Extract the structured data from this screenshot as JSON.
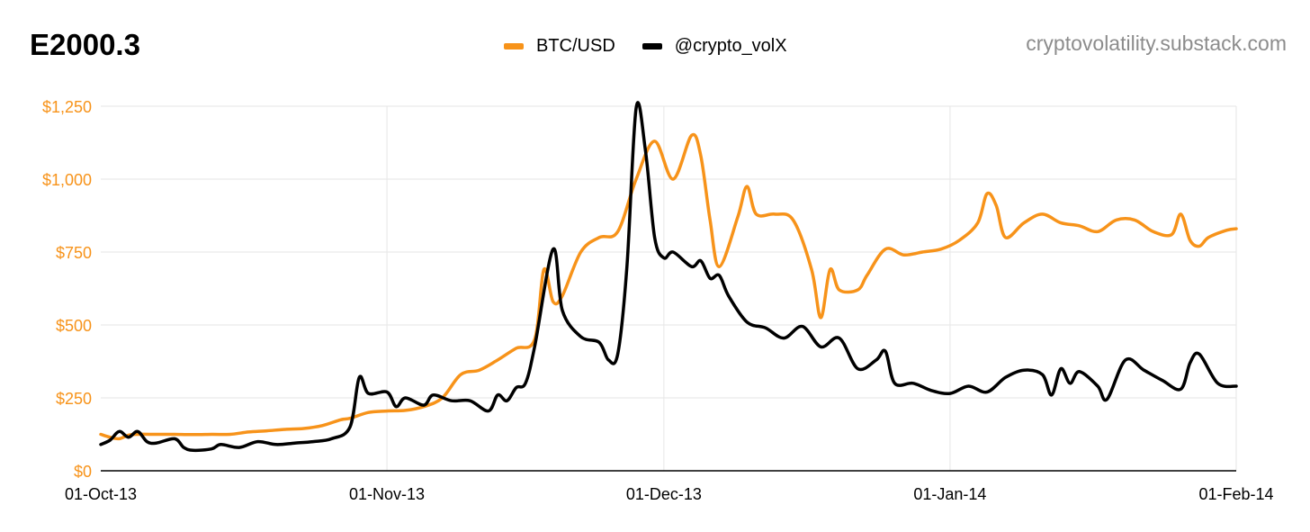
{
  "title": "E2000.3",
  "watermark": "cryptovolatility.substack.com",
  "chart_data": {
    "type": "line",
    "x_type": "date",
    "xlim": [
      "2013-10-01",
      "2014-02-01"
    ],
    "ylim": [
      0,
      1250
    ],
    "y_ticks": [
      0,
      250,
      500,
      750,
      1000,
      1250
    ],
    "y_tick_labels": [
      "$0",
      "$250",
      "$500",
      "$750",
      "$1,000",
      "$1,250"
    ],
    "x_ticks": [
      "2013-10-01",
      "2013-11-01",
      "2013-12-01",
      "2014-01-01",
      "2014-02-01"
    ],
    "x_tick_labels": [
      "01-Oct-13",
      "01-Nov-13",
      "01-Dec-13",
      "01-Jan-14",
      "01-Feb-14"
    ],
    "y_tick_color": "#f7931a",
    "grid": true,
    "legend_position": "top-center",
    "series": [
      {
        "name": "BTC/USD",
        "color": "#f7931a",
        "points": [
          [
            "2013-10-01",
            125
          ],
          [
            "2013-10-02",
            115
          ],
          [
            "2013-10-03",
            110
          ],
          [
            "2013-10-04",
            122
          ],
          [
            "2013-10-05",
            125
          ],
          [
            "2013-10-07",
            125
          ],
          [
            "2013-10-09",
            125
          ],
          [
            "2013-10-11",
            124
          ],
          [
            "2013-10-13",
            125
          ],
          [
            "2013-10-15",
            125
          ],
          [
            "2013-10-17",
            133
          ],
          [
            "2013-10-19",
            137
          ],
          [
            "2013-10-21",
            142
          ],
          [
            "2013-10-23",
            145
          ],
          [
            "2013-10-25",
            155
          ],
          [
            "2013-10-27",
            175
          ],
          [
            "2013-10-28",
            180
          ],
          [
            "2013-10-30",
            200
          ],
          [
            "2013-11-01",
            205
          ],
          [
            "2013-11-03",
            207
          ],
          [
            "2013-11-05",
            220
          ],
          [
            "2013-11-07",
            250
          ],
          [
            "2013-11-09",
            330
          ],
          [
            "2013-11-11",
            345
          ],
          [
            "2013-11-13",
            380
          ],
          [
            "2013-11-15",
            420
          ],
          [
            "2013-11-17",
            450
          ],
          [
            "2013-11-18",
            690
          ],
          [
            "2013-11-19",
            580
          ],
          [
            "2013-11-20",
            600
          ],
          [
            "2013-11-22",
            750
          ],
          [
            "2013-11-24",
            800
          ],
          [
            "2013-11-26",
            820
          ],
          [
            "2013-11-28",
            1000
          ],
          [
            "2013-11-30",
            1130
          ],
          [
            "2013-12-02",
            1000
          ],
          [
            "2013-12-04",
            1150
          ],
          [
            "2013-12-05",
            1080
          ],
          [
            "2013-12-06",
            860
          ],
          [
            "2013-12-07",
            700
          ],
          [
            "2013-12-09",
            870
          ],
          [
            "2013-12-10",
            975
          ],
          [
            "2013-12-11",
            880
          ],
          [
            "2013-12-13",
            880
          ],
          [
            "2013-12-15",
            860
          ],
          [
            "2013-12-17",
            690
          ],
          [
            "2013-12-18",
            525
          ],
          [
            "2013-12-19",
            690
          ],
          [
            "2013-12-20",
            620
          ],
          [
            "2013-12-22",
            620
          ],
          [
            "2013-12-23",
            670
          ],
          [
            "2013-12-25",
            760
          ],
          [
            "2013-12-27",
            740
          ],
          [
            "2013-12-29",
            750
          ],
          [
            "2013-12-31",
            760
          ],
          [
            "2014-01-02",
            790
          ],
          [
            "2014-01-04",
            850
          ],
          [
            "2014-01-05",
            950
          ],
          [
            "2014-01-06",
            910
          ],
          [
            "2014-01-07",
            800
          ],
          [
            "2014-01-09",
            850
          ],
          [
            "2014-01-11",
            880
          ],
          [
            "2014-01-13",
            850
          ],
          [
            "2014-01-15",
            840
          ],
          [
            "2014-01-17",
            820
          ],
          [
            "2014-01-19",
            860
          ],
          [
            "2014-01-21",
            860
          ],
          [
            "2014-01-23",
            820
          ],
          [
            "2014-01-25",
            810
          ],
          [
            "2014-01-26",
            880
          ],
          [
            "2014-01-27",
            790
          ],
          [
            "2014-01-28",
            770
          ],
          [
            "2014-01-29",
            800
          ],
          [
            "2014-01-31",
            825
          ],
          [
            "2014-02-01",
            830
          ]
        ]
      },
      {
        "name": "@crypto_volX",
        "color": "#000000",
        "points": [
          [
            "2013-10-01",
            90
          ],
          [
            "2013-10-02",
            105
          ],
          [
            "2013-10-03",
            135
          ],
          [
            "2013-10-04",
            115
          ],
          [
            "2013-10-05",
            135
          ],
          [
            "2013-10-06",
            100
          ],
          [
            "2013-10-07",
            95
          ],
          [
            "2013-10-09",
            110
          ],
          [
            "2013-10-10",
            80
          ],
          [
            "2013-10-11",
            70
          ],
          [
            "2013-10-13",
            75
          ],
          [
            "2013-10-14",
            90
          ],
          [
            "2013-10-16",
            80
          ],
          [
            "2013-10-18",
            100
          ],
          [
            "2013-10-20",
            90
          ],
          [
            "2013-10-22",
            95
          ],
          [
            "2013-10-24",
            100
          ],
          [
            "2013-10-26",
            110
          ],
          [
            "2013-10-28",
            150
          ],
          [
            "2013-10-29",
            320
          ],
          [
            "2013-10-30",
            265
          ],
          [
            "2013-11-01",
            270
          ],
          [
            "2013-11-02",
            220
          ],
          [
            "2013-11-03",
            250
          ],
          [
            "2013-11-05",
            225
          ],
          [
            "2013-11-06",
            260
          ],
          [
            "2013-11-08",
            240
          ],
          [
            "2013-11-10",
            240
          ],
          [
            "2013-11-12",
            205
          ],
          [
            "2013-11-13",
            260
          ],
          [
            "2013-11-14",
            240
          ],
          [
            "2013-11-15",
            285
          ],
          [
            "2013-11-16",
            300
          ],
          [
            "2013-11-17",
            425
          ],
          [
            "2013-11-19",
            760
          ],
          [
            "2013-11-20",
            550
          ],
          [
            "2013-11-22",
            460
          ],
          [
            "2013-11-24",
            440
          ],
          [
            "2013-11-25",
            380
          ],
          [
            "2013-11-26",
            400
          ],
          [
            "2013-11-27",
            700
          ],
          [
            "2013-11-28",
            1245
          ],
          [
            "2013-11-29",
            1100
          ],
          [
            "2013-11-30",
            800
          ],
          [
            "2013-12-01",
            730
          ],
          [
            "2013-12-02",
            750
          ],
          [
            "2013-12-04",
            700
          ],
          [
            "2013-12-05",
            720
          ],
          [
            "2013-12-06",
            660
          ],
          [
            "2013-12-07",
            670
          ],
          [
            "2013-12-08",
            600
          ],
          [
            "2013-12-10",
            510
          ],
          [
            "2013-12-12",
            490
          ],
          [
            "2013-12-14",
            455
          ],
          [
            "2013-12-16",
            495
          ],
          [
            "2013-12-18",
            425
          ],
          [
            "2013-12-20",
            455
          ],
          [
            "2013-12-22",
            350
          ],
          [
            "2013-12-24",
            380
          ],
          [
            "2013-12-25",
            410
          ],
          [
            "2013-12-26",
            300
          ],
          [
            "2013-12-28",
            300
          ],
          [
            "2013-12-30",
            275
          ],
          [
            "2014-01-01",
            265
          ],
          [
            "2014-01-03",
            290
          ],
          [
            "2014-01-05",
            270
          ],
          [
            "2014-01-07",
            320
          ],
          [
            "2014-01-09",
            345
          ],
          [
            "2014-01-11",
            330
          ],
          [
            "2014-01-12",
            260
          ],
          [
            "2014-01-13",
            350
          ],
          [
            "2014-01-14",
            300
          ],
          [
            "2014-01-15",
            340
          ],
          [
            "2014-01-17",
            290
          ],
          [
            "2014-01-18",
            245
          ],
          [
            "2014-01-20",
            380
          ],
          [
            "2014-01-22",
            345
          ],
          [
            "2014-01-24",
            310
          ],
          [
            "2014-01-26",
            280
          ],
          [
            "2014-01-27",
            370
          ],
          [
            "2014-01-28",
            400
          ],
          [
            "2014-01-30",
            300
          ],
          [
            "2014-02-01",
            290
          ]
        ]
      }
    ]
  }
}
